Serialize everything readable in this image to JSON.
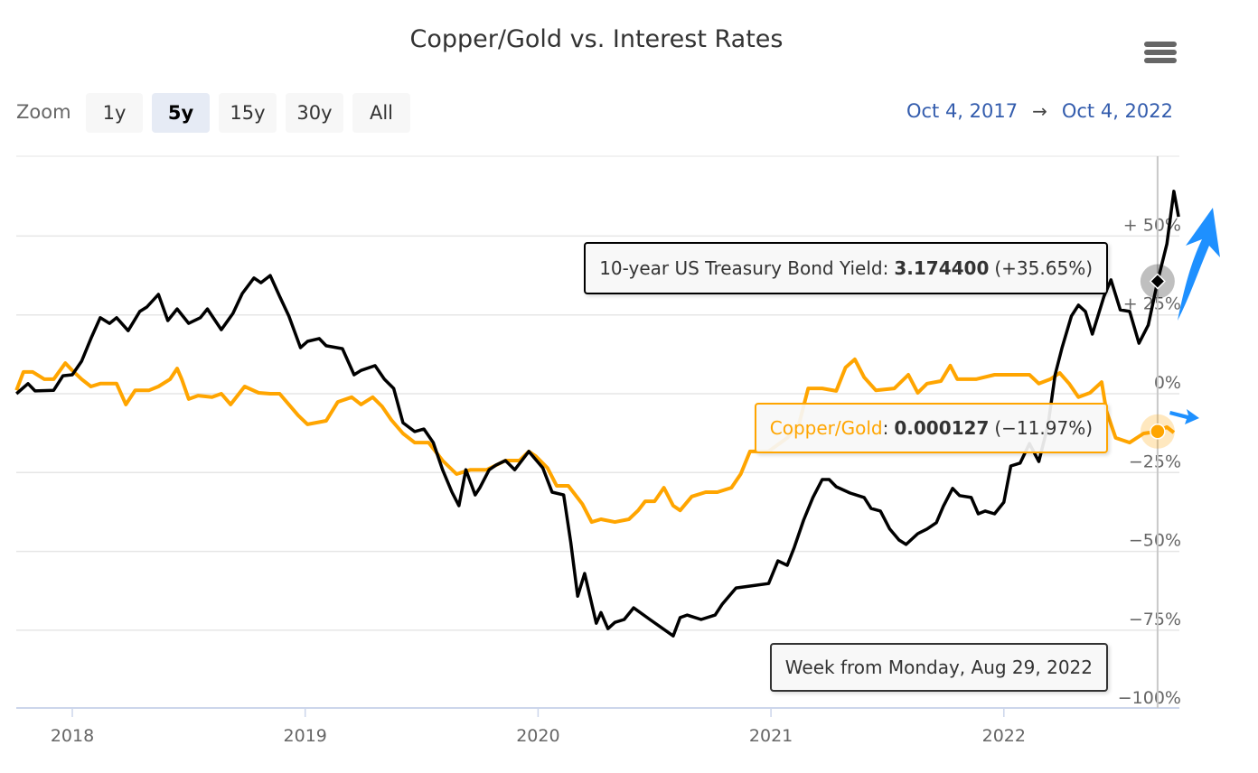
{
  "title": "Copper/Gold vs. Interest Rates",
  "range_selector": {
    "zoom_label": "Zoom",
    "buttons": [
      "1y",
      "5y",
      "15y",
      "30y",
      "All"
    ],
    "selected": "5y",
    "from": "Oct 4, 2017",
    "arrow": "→",
    "to": "Oct 4, 2022"
  },
  "menu_icon": "hamburger-menu-icon",
  "colors": {
    "copper_gold": "#ffa500",
    "treasury": "#000000",
    "annotation_arrows": "#1e90ff",
    "range_text": "#335cad"
  },
  "tooltips": {
    "treasury": {
      "name": "10-year US Treasury Bond Yield",
      "sep": ":",
      "value": "3.174400",
      "change": "(+35.65%)"
    },
    "copper_gold": {
      "name": "Copper/Gold",
      "sep": ":",
      "value": "0.000127",
      "change": "(−11.97%)"
    },
    "date": "Week from Monday, Aug 29, 2022"
  },
  "chart_data": {
    "type": "line",
    "title": "Copper/Gold vs. Interest Rates",
    "x_unit": "year",
    "xlim": [
      2017.76,
      2022.76
    ],
    "x_tick_labels": [
      "2018",
      "2019",
      "2020",
      "2021",
      "2022"
    ],
    "ylim": [
      -100,
      65
    ],
    "y_tick_labels": [
      "+ 50%",
      "+ 25%",
      "0%",
      "−25%",
      "−50%",
      "−75%",
      "−100%"
    ],
    "y_tick_values": [
      50,
      25,
      0,
      -25,
      -50,
      -75,
      -100
    ],
    "grid": true,
    "y_axis_position": "right",
    "crosshair_x": 2022.66,
    "series": [
      {
        "name": "10-year US Treasury Bond Yield",
        "color": "#000000",
        "x": [
          2017.76,
          2017.81,
          2017.84,
          2017.92,
          2017.96,
          2018.0,
          2018.04,
          2018.08,
          2018.12,
          2018.16,
          2018.19,
          2018.24,
          2018.29,
          2018.32,
          2018.37,
          2018.41,
          2018.45,
          2018.5,
          2018.55,
          2018.58,
          2018.64,
          2018.69,
          2018.73,
          2018.78,
          2018.81,
          2018.85,
          2018.89,
          2018.93,
          2018.98,
          2019.01,
          2019.06,
          2019.09,
          2019.16,
          2019.21,
          2019.24,
          2019.3,
          2019.34,
          2019.38,
          2019.42,
          2019.47,
          2019.51,
          2019.55,
          2019.59,
          2019.63,
          2019.66,
          2019.69,
          2019.73,
          2019.75,
          2019.79,
          2019.82,
          2019.86,
          2019.9,
          2019.96,
          2020.02,
          2020.06,
          2020.11,
          2020.14,
          2020.17,
          2020.2,
          2020.25,
          2020.27,
          2020.3,
          2020.33,
          2020.37,
          2020.41,
          2020.48,
          2020.58,
          2020.61,
          2020.64,
          2020.7,
          2020.76,
          2020.79,
          2020.85,
          2020.91,
          2020.99,
          2021.03,
          2021.07,
          2021.1,
          2021.14,
          2021.18,
          2021.22,
          2021.25,
          2021.28,
          2021.34,
          2021.4,
          2021.43,
          2021.47,
          2021.51,
          2021.55,
          2021.58,
          2021.63,
          2021.67,
          2021.71,
          2021.74,
          2021.78,
          2021.81,
          2021.86,
          2021.89,
          2021.92,
          2021.96,
          2022.0,
          2022.03,
          2022.07,
          2022.11,
          2022.15,
          2022.19,
          2022.22,
          2022.25,
          2022.29,
          2022.32,
          2022.35,
          2022.38,
          2022.43,
          2022.46,
          2022.5,
          2022.54,
          2022.58,
          2022.62,
          2022.66,
          2022.7,
          2022.73,
          2022.75
        ],
        "y": [
          0,
          3.2,
          0.9,
          1.1,
          5.7,
          6.0,
          10.3,
          17.5,
          24.1,
          22.3,
          24.1,
          20.0,
          26.1,
          27.5,
          31.5,
          23.2,
          26.9,
          22.3,
          24.1,
          26.9,
          20.3,
          25.5,
          31.8,
          36.7,
          35.2,
          37.5,
          30.9,
          24.6,
          14.6,
          16.6,
          17.5,
          15.2,
          14.3,
          6.0,
          7.4,
          8.9,
          4.6,
          1.7,
          -9.2,
          -12.0,
          -11.2,
          -15.5,
          -24.1,
          -31.2,
          -35.5,
          -24.1,
          -32.1,
          -29.8,
          -24.1,
          -22.6,
          -21.2,
          -24.1,
          -18.3,
          -23.5,
          -31.2,
          -32.1,
          -47.0,
          -64.2,
          -57.0,
          -72.8,
          -69.4,
          -74.5,
          -72.5,
          -71.6,
          -67.9,
          -71.6,
          -76.8,
          -71.0,
          -70.2,
          -71.6,
          -70.2,
          -66.8,
          -61.6,
          -61.0,
          -60.2,
          -53.0,
          -54.4,
          -48.7,
          -40.1,
          -32.9,
          -27.2,
          -27.2,
          -29.5,
          -31.5,
          -32.9,
          -36.4,
          -37.2,
          -42.9,
          -46.4,
          -47.8,
          -44.4,
          -42.9,
          -40.9,
          -35.7,
          -30.0,
          -32.3,
          -32.9,
          -38.1,
          -37.2,
          -38.1,
          -34.4,
          -22.9,
          -22.0,
          -15.8,
          -21.5,
          -9.7,
          6.0,
          14.6,
          24.6,
          28.1,
          26.1,
          18.9,
          30.9,
          36.1,
          26.6,
          26.1,
          16.0,
          21.8,
          35.65,
          47.5,
          64.2,
          56.1
        ]
      },
      {
        "name": "Copper/Gold",
        "color": "#ffa500",
        "x": [
          2017.76,
          2017.79,
          2017.83,
          2017.88,
          2017.92,
          2017.97,
          2018.0,
          2018.04,
          2018.08,
          2018.12,
          2018.19,
          2018.23,
          2018.27,
          2018.33,
          2018.37,
          2018.42,
          2018.45,
          2018.47,
          2018.5,
          2018.54,
          2018.6,
          2018.64,
          2018.68,
          2018.74,
          2018.8,
          2018.85,
          2018.89,
          2018.97,
          2019.01,
          2019.09,
          2019.14,
          2019.2,
          2019.24,
          2019.29,
          2019.33,
          2019.37,
          2019.42,
          2019.47,
          2019.53,
          2019.59,
          2019.65,
          2019.71,
          2019.78,
          2019.86,
          2019.92,
          2019.96,
          2019.99,
          2020.04,
          2020.08,
          2020.13,
          2020.19,
          2020.23,
          2020.27,
          2020.33,
          2020.39,
          2020.43,
          2020.46,
          2020.5,
          2020.54,
          2020.58,
          2020.61,
          2020.66,
          2020.72,
          2020.77,
          2020.83,
          2020.87,
          2020.91,
          2020.99,
          2021.07,
          2021.12,
          2021.16,
          2021.22,
          2021.28,
          2021.32,
          2021.36,
          2021.4,
          2021.45,
          2021.53,
          2021.59,
          2021.63,
          2021.67,
          2021.73,
          2021.77,
          2021.8,
          2021.88,
          2021.96,
          2022.04,
          2022.11,
          2022.15,
          2022.2,
          2022.24,
          2022.28,
          2022.32,
          2022.37,
          2022.42,
          2022.44,
          2022.48,
          2022.54,
          2022.6,
          2022.66,
          2022.7,
          2022.73
        ],
        "y": [
          1.1,
          6.9,
          6.9,
          4.6,
          4.6,
          9.7,
          7.4,
          4.6,
          2.3,
          3.2,
          3.2,
          -3.4,
          1.1,
          1.1,
          2.3,
          4.6,
          8.0,
          4.6,
          -1.7,
          -0.6,
          -1.1,
          0,
          -3.4,
          2.3,
          0.3,
          0,
          0,
          -6.9,
          -9.7,
          -8.6,
          -2.6,
          -1.1,
          -3.4,
          -1.1,
          -4.0,
          -8.3,
          -12.6,
          -15.5,
          -15.5,
          -21.2,
          -25.5,
          -24.1,
          -24.1,
          -21.2,
          -21.2,
          -18.3,
          -19.8,
          -23.5,
          -29.2,
          -29.2,
          -35.0,
          -40.7,
          -39.8,
          -40.7,
          -39.8,
          -37.0,
          -34.1,
          -34.1,
          -29.8,
          -35.5,
          -37.0,
          -32.6,
          -31.2,
          -31.2,
          -29.8,
          -25.5,
          -18.3,
          -18.3,
          -14.0,
          -9.7,
          1.7,
          1.7,
          0.9,
          8.3,
          10.9,
          5.2,
          1.1,
          1.7,
          6.0,
          0.3,
          3.2,
          4.0,
          8.9,
          4.6,
          4.6,
          6.0,
          6.0,
          6.0,
          3.2,
          4.6,
          6.6,
          3.2,
          -1.1,
          0.3,
          3.7,
          -5.4,
          -14.0,
          -15.5,
          -12.6,
          -11.97,
          -10.6,
          -12.3
        ]
      }
    ]
  }
}
